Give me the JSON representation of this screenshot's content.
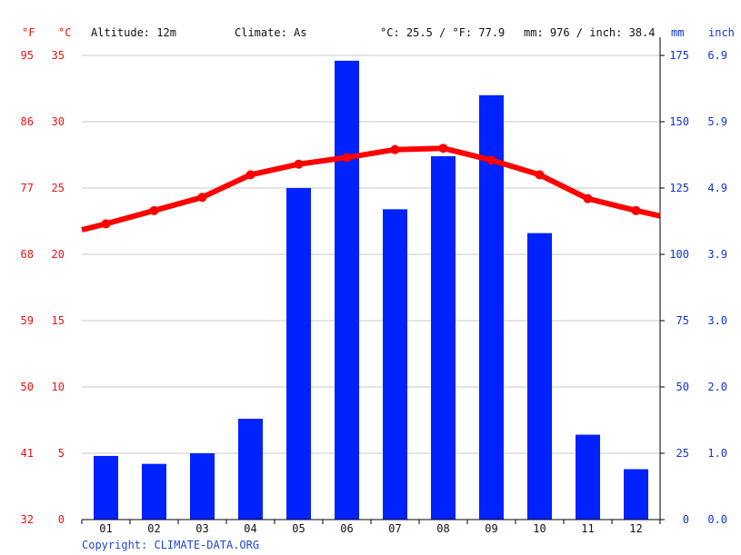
{
  "header": {
    "unit_f": "°F",
    "unit_c": "°C",
    "altitude": "Altitude: 12m",
    "climate": "Climate: As",
    "temp_avg": "°C: 25.5 / °F: 77.9",
    "precip_total": "mm: 976 / inch: 38.4",
    "unit_mm": "mm",
    "unit_inch": "inch"
  },
  "footer": {
    "copyright": "Copyright: CLIMATE-DATA.ORG"
  },
  "colors": {
    "temperature": "#ff0000",
    "precipitation": "#0022ff",
    "temp_axis": "#ee1111",
    "precip_axis": "#1133dd",
    "grid": "#c8c8c8"
  },
  "chart_data": {
    "type": "bar",
    "categories": [
      "01",
      "02",
      "03",
      "04",
      "05",
      "06",
      "07",
      "08",
      "09",
      "10",
      "11",
      "12"
    ],
    "series": [
      {
        "type": "bar",
        "axis": "right",
        "unit": "mm",
        "values": [
          24,
          21,
          25,
          38,
          125,
          173,
          117,
          137,
          160,
          108,
          32,
          19
        ]
      },
      {
        "type": "line",
        "axis": "left",
        "unit": "°C",
        "values": [
          22.3,
          23.3,
          24.3,
          26.0,
          26.8,
          27.3,
          27.9,
          28.0,
          27.1,
          26.0,
          24.2,
          23.3
        ]
      }
    ],
    "left_axis_c": {
      "ticks": [
        "0",
        "5",
        "10",
        "15",
        "20",
        "25",
        "30",
        "35"
      ],
      "ylim": [
        0,
        35
      ]
    },
    "left_axis_f": {
      "ticks": [
        "32",
        "41",
        "50",
        "59",
        "68",
        "77",
        "86",
        "95"
      ]
    },
    "right_axis_mm": {
      "ticks": [
        "0",
        "25",
        "50",
        "75",
        "100",
        "125",
        "150",
        "175"
      ],
      "ylim": [
        0,
        175
      ]
    },
    "right_axis_inch": {
      "ticks": [
        "0.0",
        "1.0",
        "2.0",
        "3.0",
        "3.9",
        "4.9",
        "5.9",
        "6.9"
      ]
    },
    "grid": true
  }
}
